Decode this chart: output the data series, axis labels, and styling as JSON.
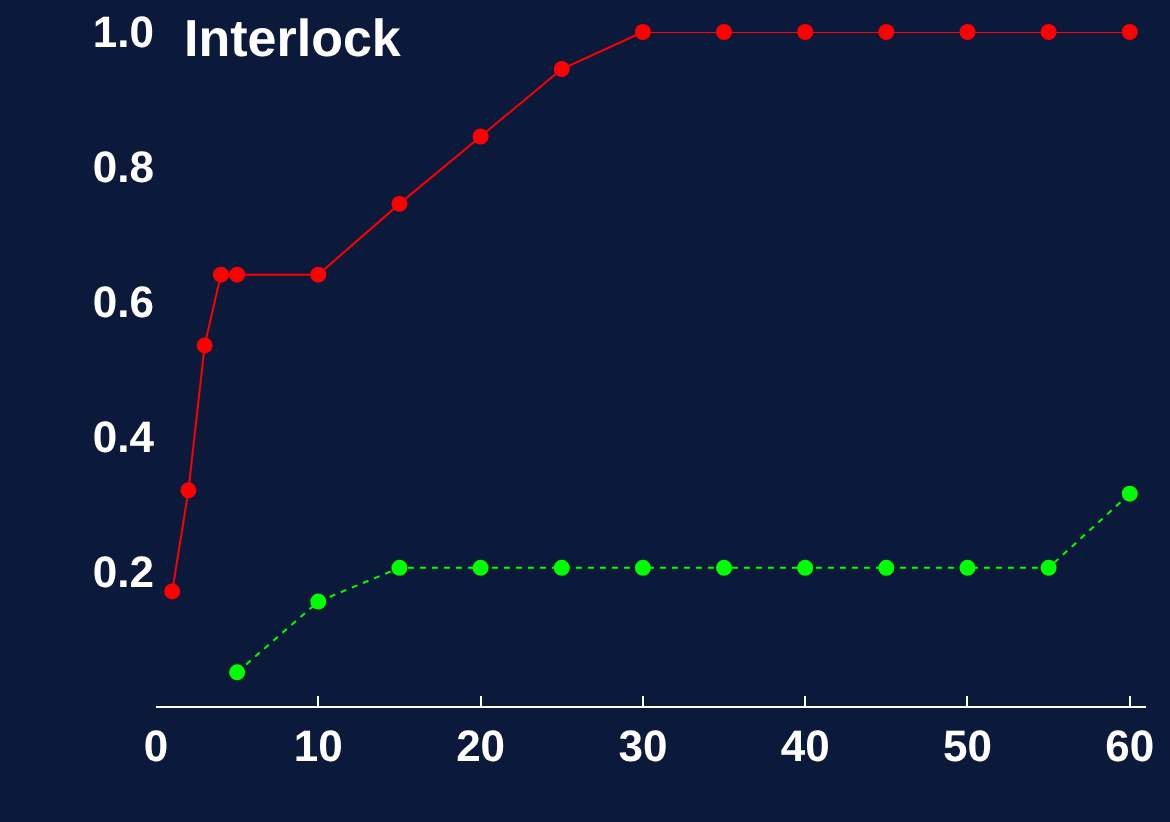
{
  "chart_data": {
    "type": "line",
    "title": "Interlock",
    "xlim": [
      0,
      61
    ],
    "ylim": [
      0,
      1
    ],
    "xticks": [
      0,
      10,
      20,
      30,
      40,
      50,
      60
    ],
    "yticks": [
      0.2,
      0.4,
      0.6,
      0.8,
      {
        "value": 1,
        "label": "1.0"
      }
    ],
    "marker": "circle",
    "series": [
      {
        "color": "#ff0000",
        "line_style": "solid",
        "x": [
          1,
          2,
          3,
          4,
          5,
          10,
          15,
          20,
          25,
          30,
          35,
          40,
          45,
          50,
          55,
          60
        ],
        "values": [
          0.17,
          0.32,
          0.535,
          0.64,
          0.64,
          0.64,
          0.745,
          0.845,
          0.945,
          1.0,
          1.0,
          1.0,
          1.0,
          1.0,
          1.0,
          1.0
        ]
      },
      {
        "color": "#00ff00",
        "line_style": "dotted",
        "x": [
          5,
          10,
          15,
          20,
          25,
          30,
          35,
          40,
          45,
          50,
          55,
          60
        ],
        "values": [
          0.05,
          0.155,
          0.205,
          0.205,
          0.205,
          0.205,
          0.205,
          0.205,
          0.205,
          0.205,
          0.205,
          0.315
        ]
      }
    ]
  }
}
